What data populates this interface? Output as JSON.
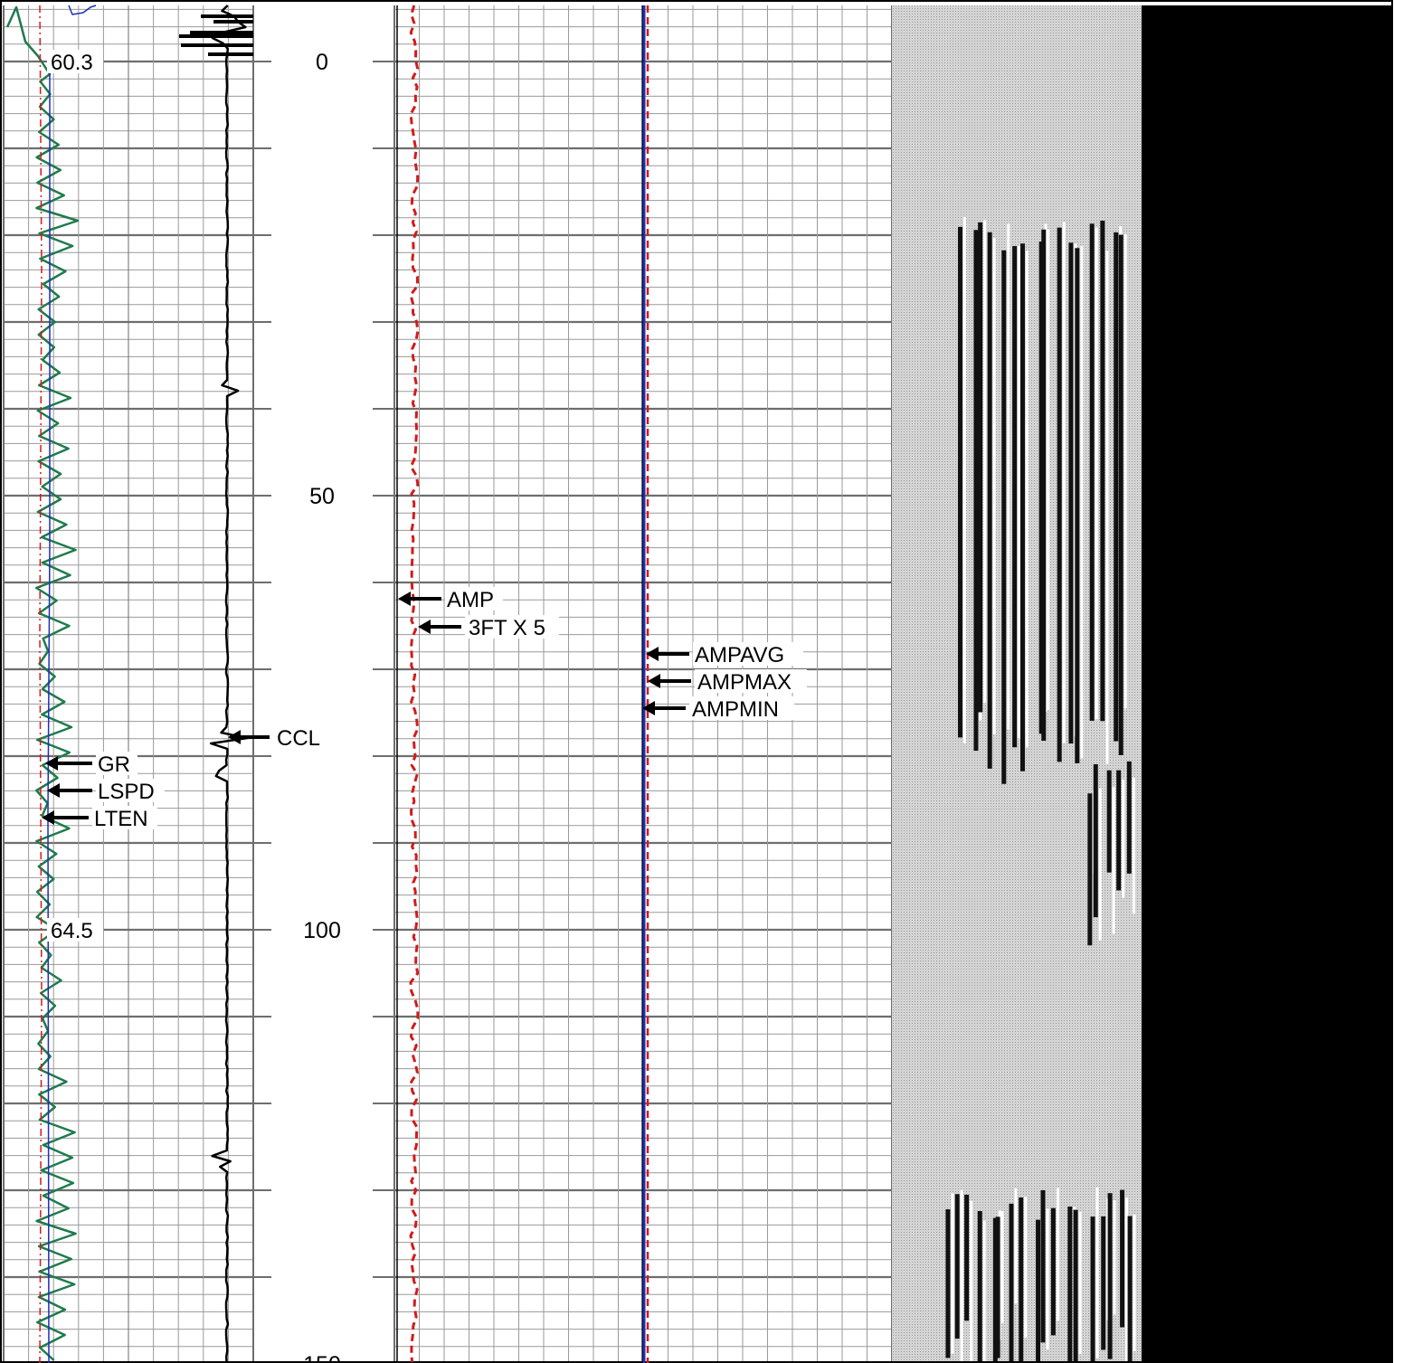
{
  "colors": {
    "grid_minor": "#9a9a9a",
    "grid_major": "#6e6e6e",
    "gr": "#1e7b4c",
    "lspd": "#1f2fb5",
    "lten": "#d21b1b",
    "ccl": "#000000",
    "amp": "#000000",
    "amp3ft": "#d21b1b",
    "ampavg": "#1f2fb5",
    "ampmax": "#d21b1b",
    "ampmin": "#000000",
    "vdl_background": "#c8c8c8",
    "dark_track": "#000000"
  },
  "chart_data": {
    "type": "line",
    "title": "",
    "depth_axis": {
      "label": "",
      "range": [
        -6,
        150
      ],
      "ticks": [
        0,
        50,
        100,
        150
      ],
      "tick_labels": [
        "0",
        "50",
        "100",
        "150"
      ]
    },
    "curve_labels": [
      "GR",
      "LSPD",
      "LTEN",
      "CCL",
      "AMP",
      "3FT X 5",
      "AMPAVG",
      "AMPMAX",
      "AMPMIN"
    ],
    "annotations": [
      {
        "text": "60.3",
        "depth": 0
      },
      {
        "text": "64.5",
        "depth": 100
      }
    ],
    "tracks": [
      {
        "name": "track-1",
        "curves": [
          "GR",
          "LSPD",
          "LTEN"
        ]
      },
      {
        "name": "track-ccl",
        "curves": [
          "CCL"
        ]
      },
      {
        "name": "depth-track",
        "curves": []
      },
      {
        "name": "track-3",
        "curves": [
          "AMP",
          "3FT X 5"
        ]
      },
      {
        "name": "track-4",
        "curves": [
          "AMPAVG",
          "AMPMAX",
          "AMPMIN"
        ]
      },
      {
        "name": "vdl-track",
        "curves": []
      },
      {
        "name": "dark-track",
        "curves": []
      }
    ],
    "grid": true,
    "legend": "arrow-pointers"
  }
}
